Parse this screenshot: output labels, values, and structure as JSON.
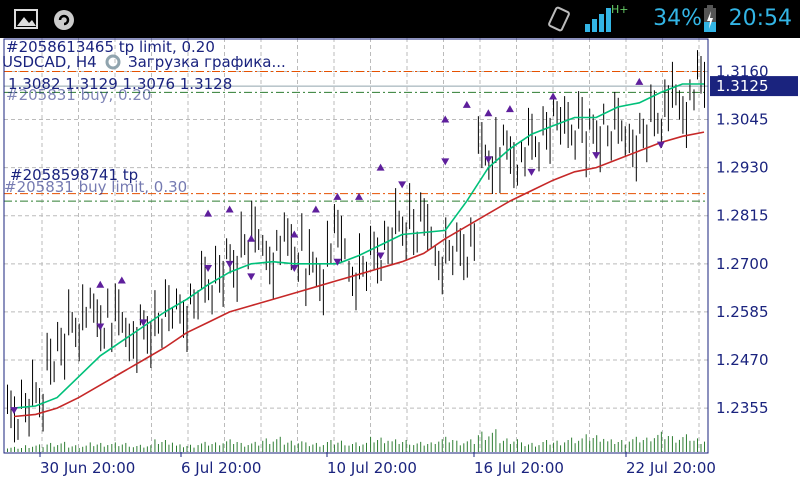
{
  "status_bar": {
    "battery": "34%",
    "time": "20:54",
    "network_label": "H+",
    "icons": [
      "gallery-icon",
      "sync-icon",
      "vibrate-icon",
      "signal-icon",
      "battery-charging-icon"
    ]
  },
  "chart_data": {
    "type": "line",
    "title": "USDCAD, H4",
    "loading_text": "Загрузка графика...",
    "ohlc": [
      "1.3082",
      "1.3129",
      "1.3076",
      "1.3128"
    ],
    "current_price": "1.3125",
    "y_ticks": [
      "1.3160",
      "1.3045",
      "1.2930",
      "1.2815",
      "1.2700",
      "1.2585",
      "1.2470",
      "1.2355"
    ],
    "x_ticks": [
      "30 Jun 20:00",
      "6 Jul 20:00",
      "10 Jul 20:00",
      "16 Jul 20:00",
      "22 Jul 20:00"
    ],
    "ylim": [
      1.225,
      1.324
    ],
    "order_lines": [
      {
        "label": "#2058613465 tp limit, 0.20",
        "price": 1.316,
        "color": "#e65100"
      },
      {
        "label": "#2058598741 tp",
        "price": 1.2868,
        "color": "#e65100"
      },
      {
        "label": "#205831 buy, 0.20",
        "price": 1.311,
        "color": "#2e7d32"
      },
      {
        "label": "#205831 buy limit, 0.30",
        "price": 1.285,
        "color": "#2e7d32"
      }
    ],
    "series": [
      {
        "name": "",
        "color": "#00c07a",
        "values": [
          1.2355,
          1.236,
          1.238,
          1.243,
          1.248,
          1.2515,
          1.255,
          1.2585,
          1.2615,
          1.265,
          1.268,
          1.27,
          1.2705,
          1.27,
          1.27,
          1.27,
          1.272,
          1.2745,
          1.277,
          1.2775,
          1.278,
          1.285,
          1.293,
          1.2975,
          1.301,
          1.303,
          1.305,
          1.305,
          1.3075,
          1.3085,
          1.311,
          1.313,
          1.313
        ]
      },
      {
        "name": "",
        "color": "#c62828",
        "values": [
          1.2335,
          1.234,
          1.2355,
          1.238,
          1.241,
          1.244,
          1.247,
          1.25,
          1.2535,
          1.256,
          1.2585,
          1.26,
          1.2615,
          1.263,
          1.2645,
          1.266,
          1.2675,
          1.269,
          1.2705,
          1.2725,
          1.276,
          1.279,
          1.282,
          1.285,
          1.2875,
          1.29,
          1.292,
          1.293,
          1.295,
          1.297,
          1.299,
          1.3005,
          1.3015
        ]
      }
    ],
    "price_bars": [
      1.234,
      1.238,
      1.249,
      1.256,
      1.257,
      1.256,
      1.253,
      1.257,
      1.258,
      1.265,
      1.27,
      1.277,
      1.272,
      1.274,
      1.268,
      1.276,
      1.267,
      1.272,
      1.279,
      1.28,
      1.272,
      1.274,
      1.296,
      1.296,
      1.298,
      1.303,
      1.302,
      1.301,
      1.303,
      1.3,
      1.306,
      1.308,
      1.3128
    ],
    "fractals_up": [
      [
        4,
        1.265
      ],
      [
        5,
        1.266
      ],
      [
        9,
        1.282
      ],
      [
        10,
        1.283
      ],
      [
        11,
        1.276
      ],
      [
        13,
        1.277
      ],
      [
        14,
        1.283
      ],
      [
        15,
        1.286
      ],
      [
        16,
        1.286
      ],
      [
        17,
        1.293
      ],
      [
        20,
        1.3045
      ],
      [
        21,
        1.308
      ],
      [
        22,
        1.306
      ],
      [
        23,
        1.307
      ],
      [
        25,
        1.31
      ],
      [
        29,
        1.3135
      ]
    ],
    "fractals_down": [
      [
        0,
        1.235
      ],
      [
        4,
        1.255
      ],
      [
        6,
        1.256
      ],
      [
        9,
        1.269
      ],
      [
        10,
        1.27
      ],
      [
        11,
        1.267
      ],
      [
        13,
        1.269
      ],
      [
        15,
        1.2705
      ],
      [
        17,
        1.272
      ],
      [
        18,
        1.289
      ],
      [
        20,
        1.2945
      ],
      [
        22,
        1.295
      ],
      [
        24,
        1.292
      ],
      [
        27,
        1.296
      ],
      [
        30,
        1.2985
      ]
    ],
    "volumes": [
      2,
      3,
      4,
      3,
      4,
      4,
      3,
      5,
      3,
      4,
      5,
      4,
      6,
      5,
      4,
      5,
      4,
      6,
      5,
      4,
      6,
      5,
      9,
      6,
      4,
      5,
      6,
      7,
      5,
      6,
      8,
      7,
      6
    ]
  }
}
